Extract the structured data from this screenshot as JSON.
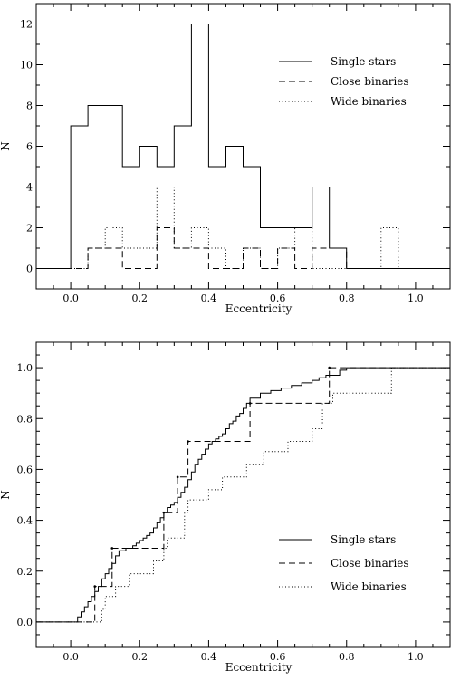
{
  "chart_data": [
    {
      "type": "histogram",
      "xlabel": "Eccentricity",
      "ylabel": "N",
      "xlim": [
        -0.1,
        1.1
      ],
      "ylim": [
        -1,
        13
      ],
      "xticks": [
        0.0,
        0.2,
        0.4,
        0.6,
        0.8,
        1.0
      ],
      "xtick_labels": [
        "0.0",
        "0.2",
        "0.4",
        "0.6",
        "0.8",
        "1.0"
      ],
      "yticks": [
        0,
        2,
        4,
        6,
        8,
        10,
        12
      ],
      "ytick_labels": [
        "0",
        "2",
        "4",
        "6",
        "8",
        "10",
        "12"
      ],
      "bin_edges": [
        -0.1,
        0.0,
        0.05,
        0.1,
        0.15,
        0.2,
        0.25,
        0.3,
        0.35,
        0.4,
        0.45,
        0.5,
        0.55,
        0.6,
        0.65,
        0.7,
        0.75,
        0.8,
        0.85,
        0.9,
        0.95,
        1.0,
        1.1
      ],
      "legend_position": "upper-right",
      "series": [
        {
          "name": "Single stars",
          "style": "solid",
          "values": [
            0,
            7,
            8,
            8,
            5,
            6,
            5,
            7,
            12,
            5,
            6,
            5,
            2,
            2,
            2,
            4,
            1,
            0,
            0,
            0,
            0,
            0
          ]
        },
        {
          "name": "Close binaries",
          "style": "dashed",
          "values": [
            0,
            0,
            1,
            1,
            0,
            0,
            2,
            1,
            1,
            0,
            0,
            1,
            0,
            1,
            0,
            1,
            1,
            0,
            0,
            0,
            0,
            0
          ]
        },
        {
          "name": "Wide binaries",
          "style": "dotted",
          "values": [
            0,
            0,
            1,
            2,
            1,
            1,
            4,
            1,
            2,
            1,
            0,
            1,
            0,
            1,
            2,
            0,
            0,
            0,
            0,
            2,
            0,
            0
          ]
        }
      ]
    },
    {
      "type": "line",
      "step": true,
      "xlabel": "Eccentricity",
      "ylabel": "N",
      "xlim": [
        -0.1,
        1.1
      ],
      "ylim": [
        -0.1,
        1.1
      ],
      "xticks": [
        0.0,
        0.2,
        0.4,
        0.6,
        0.8,
        1.0
      ],
      "xtick_labels": [
        "0.0",
        "0.2",
        "0.4",
        "0.6",
        "0.8",
        "1.0"
      ],
      "yticks": [
        0.0,
        0.2,
        0.4,
        0.6,
        0.8,
        1.0
      ],
      "ytick_labels": [
        "0.0",
        "0.2",
        "0.4",
        "0.6",
        "0.8",
        "1.0"
      ],
      "legend_position": "lower-right",
      "series": [
        {
          "name": "Single stars",
          "style": "solid",
          "x": [
            -0.1,
            0.02,
            0.03,
            0.04,
            0.05,
            0.06,
            0.07,
            0.08,
            0.09,
            0.1,
            0.11,
            0.12,
            0.13,
            0.14,
            0.16,
            0.18,
            0.19,
            0.2,
            0.21,
            0.22,
            0.23,
            0.24,
            0.25,
            0.26,
            0.27,
            0.28,
            0.29,
            0.3,
            0.31,
            0.32,
            0.33,
            0.34,
            0.35,
            0.36,
            0.37,
            0.38,
            0.39,
            0.4,
            0.41,
            0.42,
            0.43,
            0.44,
            0.45,
            0.46,
            0.47,
            0.48,
            0.49,
            0.5,
            0.51,
            0.52,
            0.55,
            0.58,
            0.61,
            0.64,
            0.67,
            0.7,
            0.72,
            0.74,
            0.78,
            0.8,
            1.1
          ],
          "y": [
            0.0,
            0.02,
            0.04,
            0.06,
            0.08,
            0.1,
            0.12,
            0.14,
            0.17,
            0.19,
            0.21,
            0.23,
            0.26,
            0.28,
            0.29,
            0.3,
            0.31,
            0.32,
            0.33,
            0.34,
            0.35,
            0.37,
            0.39,
            0.41,
            0.43,
            0.45,
            0.46,
            0.47,
            0.49,
            0.51,
            0.53,
            0.56,
            0.59,
            0.62,
            0.64,
            0.66,
            0.68,
            0.7,
            0.71,
            0.72,
            0.73,
            0.74,
            0.76,
            0.78,
            0.79,
            0.81,
            0.82,
            0.84,
            0.86,
            0.88,
            0.9,
            0.91,
            0.92,
            0.93,
            0.94,
            0.95,
            0.96,
            0.97,
            0.99,
            1.0,
            1.0
          ]
        },
        {
          "name": "Close binaries",
          "style": "dashed",
          "x": [
            -0.1,
            0.07,
            0.12,
            0.14,
            0.27,
            0.31,
            0.33,
            0.34,
            0.52,
            0.75,
            1.1
          ],
          "y": [
            0.0,
            0.14,
            0.29,
            0.29,
            0.43,
            0.57,
            0.57,
            0.71,
            0.86,
            1.0,
            1.0
          ],
          "points": [
            [
              0.07,
              0.14
            ],
            [
              0.12,
              0.29
            ],
            [
              0.27,
              0.43
            ],
            [
              0.31,
              0.57
            ],
            [
              0.34,
              0.71
            ],
            [
              0.52,
              0.86
            ],
            [
              0.75,
              1.0
            ]
          ]
        },
        {
          "name": "Wide binaries",
          "style": "dotted",
          "x": [
            -0.1,
            0.09,
            0.1,
            0.13,
            0.17,
            0.24,
            0.27,
            0.28,
            0.33,
            0.34,
            0.4,
            0.44,
            0.51,
            0.56,
            0.63,
            0.7,
            0.73,
            0.76,
            0.93,
            1.1
          ],
          "y": [
            0.0,
            0.05,
            0.1,
            0.14,
            0.19,
            0.24,
            0.29,
            0.33,
            0.43,
            0.48,
            0.52,
            0.57,
            0.62,
            0.67,
            0.71,
            0.76,
            0.86,
            0.9,
            1.0,
            1.0
          ]
        }
      ]
    }
  ]
}
